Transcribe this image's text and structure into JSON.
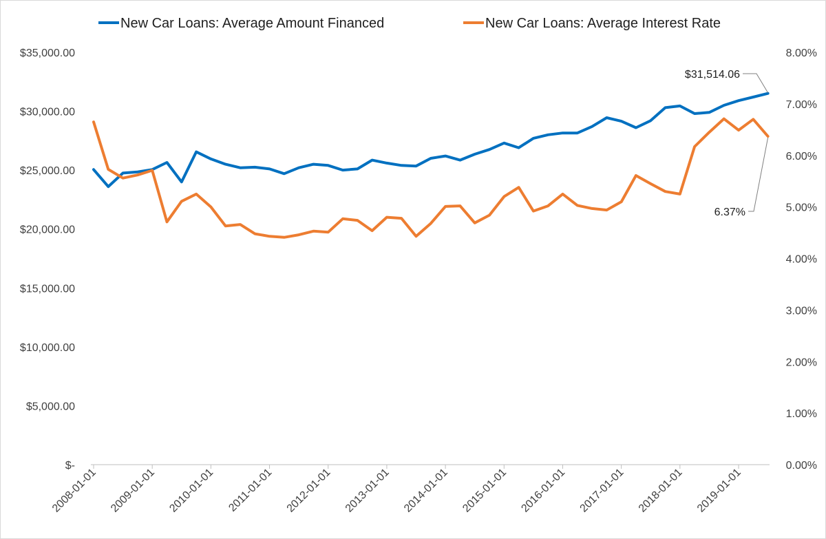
{
  "chart_data": {
    "type": "line",
    "title": "",
    "xlabel": "",
    "ylabel": "",
    "y2label": "",
    "legend_position": "top",
    "grid": false,
    "x_dates": [
      "2008-01-01",
      "2008-04-01",
      "2008-07-01",
      "2008-10-01",
      "2009-01-01",
      "2009-04-01",
      "2009-07-01",
      "2009-10-01",
      "2010-01-01",
      "2010-04-01",
      "2010-07-01",
      "2010-10-01",
      "2011-01-01",
      "2011-04-01",
      "2011-07-01",
      "2011-10-01",
      "2012-01-01",
      "2012-04-01",
      "2012-07-01",
      "2012-10-01",
      "2013-01-01",
      "2013-04-01",
      "2013-07-01",
      "2013-10-01",
      "2014-01-01",
      "2014-04-01",
      "2014-07-01",
      "2014-10-01",
      "2015-01-01",
      "2015-04-01",
      "2015-07-01",
      "2015-10-01",
      "2016-01-01",
      "2016-04-01",
      "2016-07-01",
      "2016-10-01",
      "2017-01-01",
      "2017-04-01",
      "2017-07-01",
      "2017-10-01",
      "2018-01-01",
      "2018-04-01",
      "2018-07-01",
      "2018-10-01",
      "2019-01-01",
      "2019-04-01",
      "2019-07-01"
    ],
    "x_tick_labels": [
      "2008-01-01",
      "2009-01-01",
      "2010-01-01",
      "2011-01-01",
      "2012-01-01",
      "2013-01-01",
      "2014-01-01",
      "2015-01-01",
      "2016-01-01",
      "2017-01-01",
      "2018-01-01",
      "2019-01-01"
    ],
    "y_left": {
      "ticks": [
        "$-",
        "$5,000.00",
        "$10,000.00",
        "$15,000.00",
        "$20,000.00",
        "$25,000.00",
        "$30,000.00",
        "$35,000.00"
      ],
      "ylim": [
        0,
        35000
      ]
    },
    "y_right": {
      "ticks": [
        "0.00%",
        "1.00%",
        "2.00%",
        "3.00%",
        "4.00%",
        "5.00%",
        "6.00%",
        "7.00%",
        "8.00%"
      ],
      "ylim": [
        0,
        8
      ]
    },
    "series": [
      {
        "name": "New Car Loans: Average Amount Financed",
        "axis": "left",
        "color": "#0070c0",
        "values": [
          25050,
          23600,
          24750,
          24850,
          25050,
          25650,
          24000,
          26550,
          25950,
          25500,
          25200,
          25250,
          25100,
          24700,
          25200,
          25500,
          25400,
          25000,
          25100,
          25850,
          25600,
          25400,
          25350,
          26000,
          26200,
          25850,
          26350,
          26750,
          27300,
          26900,
          27700,
          28000,
          28150,
          28150,
          28700,
          29450,
          29150,
          28600,
          29200,
          30300,
          30450,
          29800,
          29900,
          30500,
          30900,
          31200,
          31514.06
        ]
      },
      {
        "name": "New Car Loans: Average Interest Rate",
        "axis": "right",
        "color": "#ed7d31",
        "values": [
          6.65,
          5.73,
          5.56,
          5.62,
          5.71,
          4.71,
          5.11,
          5.25,
          5.0,
          4.63,
          4.66,
          4.48,
          4.43,
          4.41,
          4.46,
          4.53,
          4.51,
          4.77,
          4.74,
          4.54,
          4.8,
          4.78,
          4.43,
          4.68,
          5.01,
          5.02,
          4.69,
          4.84,
          5.2,
          5.38,
          4.92,
          5.02,
          5.25,
          5.03,
          4.97,
          4.94,
          5.1,
          5.61,
          5.45,
          5.3,
          5.25,
          6.17,
          6.45,
          6.71,
          6.49,
          6.7,
          6.37
        ]
      }
    ],
    "annotations": [
      {
        "series": 0,
        "text": "$31,514.06"
      },
      {
        "series": 1,
        "text": "6.37%"
      }
    ]
  }
}
